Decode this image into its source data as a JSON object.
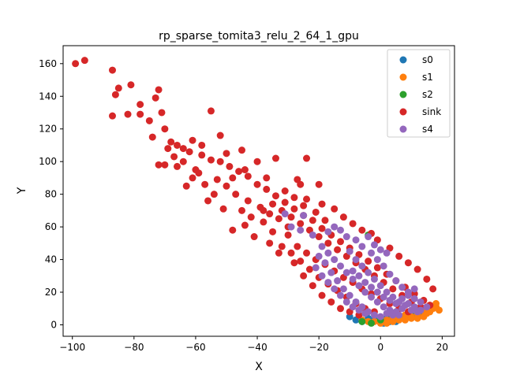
{
  "chart_data": {
    "type": "scatter",
    "title": "rp_sparse_tomita3_relu_2_64_1_gpu",
    "xlabel": "X",
    "ylabel": "Y",
    "xlim": [
      -103,
      24
    ],
    "ylim": [
      -7,
      171
    ],
    "xticks": [
      -100,
      -80,
      -60,
      -40,
      -20,
      0,
      20
    ],
    "yticks": [
      0,
      20,
      40,
      60,
      80,
      100,
      120,
      140,
      160
    ],
    "grid": false,
    "legend_position": "top-right",
    "series": [
      {
        "name": "s0",
        "color": "#1f77b4",
        "points": [
          [
            -8,
            3
          ],
          [
            -6,
            2
          ],
          [
            -4,
            4
          ],
          [
            -2,
            3
          ],
          [
            0,
            2
          ],
          [
            2,
            4
          ],
          [
            4,
            3
          ],
          [
            6,
            5
          ],
          [
            8,
            4
          ],
          [
            10,
            6
          ],
          [
            12,
            5
          ],
          [
            14,
            7
          ],
          [
            -10,
            5
          ],
          [
            1,
            1
          ],
          [
            3,
            2
          ],
          [
            5,
            2
          ]
        ]
      },
      {
        "name": "s1",
        "color": "#ff7f0e",
        "points": [
          [
            -4,
            2
          ],
          [
            0,
            1
          ],
          [
            2,
            1
          ],
          [
            4,
            2
          ],
          [
            6,
            3
          ],
          [
            8,
            3
          ],
          [
            10,
            4
          ],
          [
            12,
            4
          ],
          [
            14,
            5
          ],
          [
            15,
            7
          ],
          [
            16,
            8
          ],
          [
            17,
            10
          ],
          [
            18,
            11
          ],
          [
            18,
            13
          ],
          [
            19,
            9
          ],
          [
            16,
            12
          ],
          [
            14,
            9
          ],
          [
            12,
            7
          ],
          [
            10,
            5
          ],
          [
            8,
            6
          ],
          [
            6,
            4
          ],
          [
            4,
            5
          ],
          [
            2,
            3
          ],
          [
            -2,
            2
          ],
          [
            -6,
            3
          ]
        ]
      },
      {
        "name": "s2",
        "color": "#2ca02c",
        "points": [
          [
            -4,
            55
          ],
          [
            -6,
            2
          ],
          [
            -3,
            1
          ],
          [
            0,
            3
          ]
        ]
      },
      {
        "name": "sink",
        "color": "#d62728",
        "points": [
          [
            -96,
            162
          ],
          [
            -99,
            160
          ],
          [
            -87,
            156
          ],
          [
            -85,
            145
          ],
          [
            -86,
            141
          ],
          [
            -81,
            147
          ],
          [
            -87,
            128
          ],
          [
            -82,
            129
          ],
          [
            -78,
            135
          ],
          [
            -78,
            129
          ],
          [
            -73,
            139
          ],
          [
            -72,
            144
          ],
          [
            -71,
            130
          ],
          [
            -75,
            125
          ],
          [
            -74,
            115
          ],
          [
            -70,
            120
          ],
          [
            -68,
            112
          ],
          [
            -66,
            110
          ],
          [
            -64,
            108
          ],
          [
            -62,
            106
          ],
          [
            -58,
            104
          ],
          [
            -55,
            101
          ],
          [
            -52,
            100
          ],
          [
            -49,
            97
          ],
          [
            -46,
            94
          ],
          [
            -43,
            91
          ],
          [
            -40,
            86
          ],
          [
            -37,
            83
          ],
          [
            -34,
            79
          ],
          [
            -31,
            75
          ],
          [
            -28,
            71
          ],
          [
            -25,
            67
          ],
          [
            -22,
            64
          ],
          [
            -19,
            59
          ],
          [
            -16,
            55
          ],
          [
            -13,
            51
          ],
          [
            -10,
            47
          ],
          [
            -7,
            43
          ],
          [
            -4,
            39
          ],
          [
            -1,
            35
          ],
          [
            2,
            31
          ],
          [
            5,
            27
          ],
          [
            8,
            23
          ],
          [
            11,
            19
          ],
          [
            14,
            15
          ],
          [
            16,
            12
          ],
          [
            -70,
            98
          ],
          [
            -72,
            98
          ],
          [
            -63,
            85
          ],
          [
            -59,
            93
          ],
          [
            -56,
            76
          ],
          [
            -54,
            80
          ],
          [
            -51,
            71
          ],
          [
            -48,
            58
          ],
          [
            -44,
            61
          ],
          [
            -41,
            54
          ],
          [
            -38,
            63
          ],
          [
            -35,
            57
          ],
          [
            -32,
            48
          ],
          [
            -29,
            44
          ],
          [
            -26,
            39
          ],
          [
            -23,
            34
          ],
          [
            -20,
            29
          ],
          [
            -17,
            25
          ],
          [
            -14,
            21
          ],
          [
            -11,
            17
          ],
          [
            -8,
            13
          ],
          [
            -5,
            10
          ],
          [
            -2,
            8
          ],
          [
            -55,
            131
          ],
          [
            -52,
            116
          ],
          [
            -45,
            107
          ],
          [
            -34,
            102
          ],
          [
            -24,
            102
          ],
          [
            -27,
            89
          ],
          [
            -26,
            86
          ],
          [
            -20,
            86
          ],
          [
            -24,
            77
          ],
          [
            -19,
            74
          ],
          [
            -15,
            71
          ],
          [
            -12,
            66
          ],
          [
            -9,
            62
          ],
          [
            -6,
            58
          ],
          [
            -3,
            56
          ],
          [
            -1,
            52
          ],
          [
            3,
            47
          ],
          [
            6,
            42
          ],
          [
            9,
            38
          ],
          [
            12,
            34
          ],
          [
            15,
            28
          ],
          [
            17,
            22
          ],
          [
            -30,
            55
          ],
          [
            -27,
            48
          ],
          [
            -24,
            44
          ],
          [
            -21,
            40
          ],
          [
            -18,
            37
          ],
          [
            -15,
            33
          ],
          [
            -12,
            29
          ],
          [
            -9,
            26
          ],
          [
            -6,
            22
          ],
          [
            -3,
            19
          ],
          [
            0,
            16
          ],
          [
            3,
            13
          ],
          [
            6,
            10
          ],
          [
            9,
            8
          ],
          [
            -66,
            97
          ],
          [
            -61,
            90
          ],
          [
            -57,
            86
          ],
          [
            -53,
            89
          ],
          [
            -50,
            85
          ],
          [
            -47,
            80
          ],
          [
            -43,
            76
          ],
          [
            -39,
            72
          ],
          [
            -36,
            68
          ],
          [
            -33,
            65
          ],
          [
            -30,
            60
          ],
          [
            -45,
            70
          ],
          [
            -42,
            66
          ],
          [
            -38,
            70
          ],
          [
            -35,
            74
          ],
          [
            -32,
            70
          ],
          [
            -29,
            66
          ],
          [
            -26,
            62
          ],
          [
            -23,
            58
          ],
          [
            -20,
            54
          ],
          [
            -17,
            50
          ],
          [
            -14,
            46
          ],
          [
            -11,
            42
          ],
          [
            -8,
            38
          ],
          [
            -5,
            34
          ],
          [
            -2,
            30
          ],
          [
            1,
            26
          ],
          [
            4,
            22
          ],
          [
            7,
            18
          ],
          [
            10,
            14
          ],
          [
            13,
            11
          ],
          [
            -40,
            100
          ],
          [
            -44,
            95
          ],
          [
            -48,
            90
          ],
          [
            -60,
            95
          ],
          [
            -64,
            100
          ],
          [
            -67,
            103
          ],
          [
            -69,
            108
          ],
          [
            -61,
            113
          ],
          [
            -58,
            110
          ],
          [
            -50,
            105
          ],
          [
            -37,
            90
          ],
          [
            -31,
            82
          ],
          [
            -28,
            78
          ],
          [
            -25,
            73
          ],
          [
            -21,
            69
          ],
          [
            -18,
            64
          ],
          [
            -36,
            50
          ],
          [
            -33,
            44
          ],
          [
            -28,
            38
          ],
          [
            -25,
            30
          ],
          [
            -22,
            24
          ],
          [
            -19,
            18
          ],
          [
            -16,
            14
          ],
          [
            -13,
            10
          ],
          [
            -10,
            8
          ],
          [
            -7,
            6
          ]
        ]
      },
      {
        "name": "s4",
        "color": "#9467bd",
        "points": [
          [
            -31,
            68
          ],
          [
            -25,
            67
          ],
          [
            -29,
            60
          ],
          [
            -26,
            58
          ],
          [
            -22,
            55
          ],
          [
            -17,
            57
          ],
          [
            -15,
            60
          ],
          [
            -13,
            58
          ],
          [
            -11,
            54
          ],
          [
            -19,
            48
          ],
          [
            -17,
            44
          ],
          [
            -15,
            40
          ],
          [
            -13,
            36
          ],
          [
            -11,
            32
          ],
          [
            -9,
            28
          ],
          [
            -7,
            24
          ],
          [
            -5,
            20
          ],
          [
            -3,
            17
          ],
          [
            -1,
            14
          ],
          [
            1,
            11
          ],
          [
            3,
            9
          ],
          [
            5,
            8
          ],
          [
            7,
            10
          ],
          [
            9,
            13
          ],
          [
            11,
            16
          ],
          [
            13,
            14
          ],
          [
            15,
            11
          ],
          [
            -10,
            45
          ],
          [
            -8,
            40
          ],
          [
            -6,
            36
          ],
          [
            -4,
            32
          ],
          [
            -2,
            28
          ],
          [
            0,
            24
          ],
          [
            2,
            20
          ],
          [
            4,
            17
          ],
          [
            6,
            14
          ],
          [
            8,
            12
          ],
          [
            10,
            9
          ],
          [
            12,
            8
          ],
          [
            -18,
            38
          ],
          [
            -16,
            32
          ],
          [
            -14,
            27
          ],
          [
            -12,
            22
          ],
          [
            -10,
            18
          ],
          [
            -8,
            14
          ],
          [
            -6,
            11
          ],
          [
            -4,
            8
          ],
          [
            -2,
            6
          ],
          [
            0,
            5
          ],
          [
            2,
            7
          ],
          [
            4,
            6
          ],
          [
            6,
            6
          ],
          [
            -20,
            42
          ],
          [
            -21,
            35
          ],
          [
            -19,
            30
          ],
          [
            -17,
            26
          ],
          [
            -15,
            22
          ],
          [
            -13,
            18
          ],
          [
            -11,
            14
          ],
          [
            -9,
            11
          ],
          [
            -7,
            9
          ],
          [
            -5,
            7
          ],
          [
            -3,
            44
          ],
          [
            -1,
            40
          ],
          [
            1,
            36
          ],
          [
            3,
            31
          ],
          [
            5,
            27
          ],
          [
            7,
            23
          ],
          [
            9,
            20
          ],
          [
            11,
            22
          ],
          [
            -2,
            49
          ],
          [
            0,
            46
          ],
          [
            2,
            44
          ],
          [
            -6,
            48
          ],
          [
            -8,
            52
          ],
          [
            -4,
            54
          ],
          [
            -9,
            33
          ],
          [
            -7,
            30
          ],
          [
            -5,
            26
          ],
          [
            -3,
            23
          ],
          [
            -1,
            20
          ],
          [
            1,
            17
          ],
          [
            3,
            15
          ],
          [
            5,
            13
          ],
          [
            7,
            16
          ],
          [
            9,
            18
          ],
          [
            11,
            11
          ],
          [
            13,
            9
          ]
        ]
      }
    ]
  }
}
